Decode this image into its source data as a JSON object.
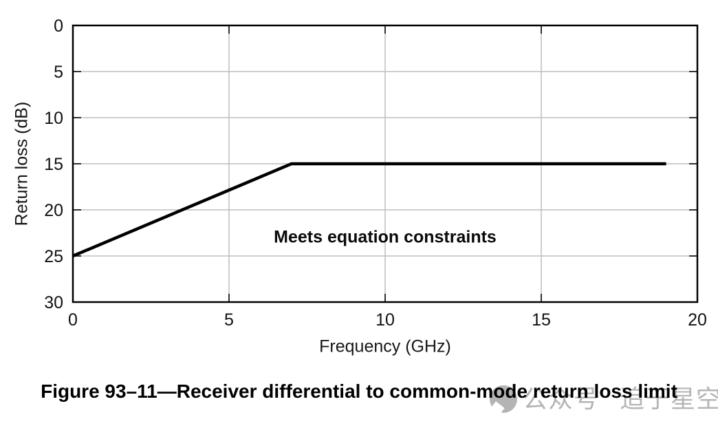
{
  "figure": {
    "caption": "Figure 93–11—Receiver differential to common-mode return loss limit"
  },
  "watermark": {
    "prefix": "公众号",
    "name": "追于星空",
    "text_color": "#b5b5b5",
    "logo": "speech-bubble-circle"
  },
  "chart_data": {
    "type": "line",
    "title": "",
    "xlabel": "Frequency (GHz)",
    "ylabel": "Return loss (dB)",
    "xlim": [
      0,
      20
    ],
    "ylim": [
      0,
      30
    ],
    "y_axis_direction": "inverted (0 dB at top, 30 dB at bottom)",
    "xticks": [
      0,
      5,
      10,
      15,
      20
    ],
    "yticks": [
      0,
      5,
      10,
      15,
      20,
      25,
      30
    ],
    "grid": true,
    "tick_style": "inward ticks on all four sides of boxed plot",
    "series": [
      {
        "name": "Receiver differential to common-mode return loss limit",
        "points": [
          [
            0,
            25
          ],
          [
            7,
            15
          ],
          [
            19,
            15
          ]
        ],
        "color": "#000000",
        "line_width": 4.5
      }
    ],
    "annotation": {
      "text": "Meets equation constraints",
      "x": 10,
      "y": 23,
      "bold": true
    },
    "colors": {
      "grid": "#bdbdbd",
      "axis_border": "#000000",
      "tick": "#303030",
      "tick_label": "#111111"
    }
  }
}
